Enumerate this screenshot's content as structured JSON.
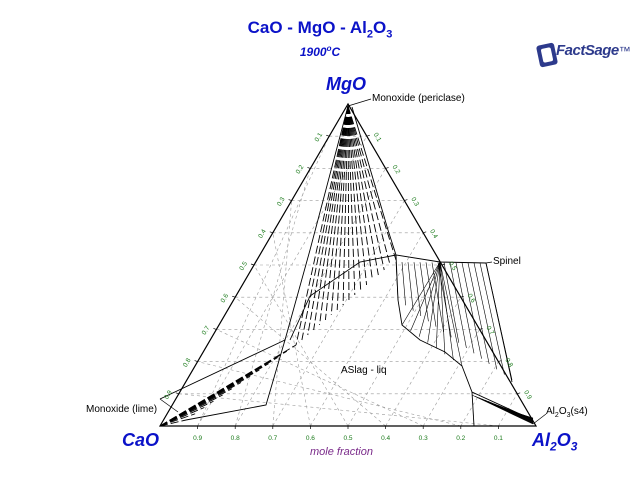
{
  "header": {
    "title_pre": "CaO - MgO - Al",
    "title_sub": "2",
    "title_post": "O",
    "title_sub2": "3",
    "temperature_value": "1900",
    "temperature_deg": "o",
    "temperature_unit": "C"
  },
  "logo": {
    "text_bold": "FactSage",
    "text_tm": "™"
  },
  "vertices": {
    "top": "MgO",
    "left": "CaO",
    "right_pre": "Al",
    "right_sub": "2",
    "right_post": "O",
    "right_sub2": "3"
  },
  "axis": {
    "label": "mole fraction"
  },
  "ticks": {
    "bottom": [
      "0.9",
      "0.8",
      "0.7",
      "0.6",
      "0.5",
      "0.4",
      "0.3",
      "0.2",
      "0.1"
    ],
    "left": [
      "0.9",
      "0.8",
      "0.7",
      "0.6",
      "0.5",
      "0.4",
      "0.3",
      "0.2",
      "0.1"
    ],
    "right": [
      "0.9",
      "0.8",
      "0.7",
      "0.6",
      "0.5",
      "0.4",
      "0.3",
      "0.2",
      "0.1"
    ]
  },
  "phases": {
    "periclase": "Monoxide (periclase)",
    "lime": "Monoxide (lime)",
    "spinel": "Spinel",
    "slag": "ASlag - liq",
    "al2o3_pre": "Al",
    "al2o3_sub": "2",
    "al2o3_mid": "O",
    "al2o3_sub2": "3",
    "al2o3_post": "(s4)"
  },
  "colors": {
    "title": "#0b12c8",
    "ticks": "#1a7a1a",
    "axis_label": "#7a2a8a",
    "lines": "#000000"
  }
}
